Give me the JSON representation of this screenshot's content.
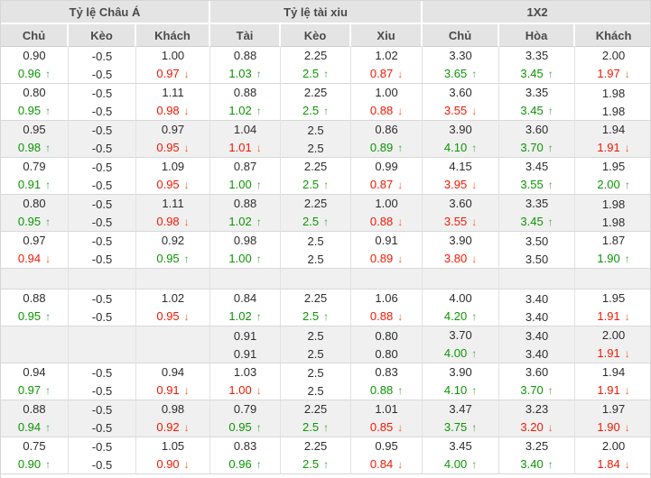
{
  "colors": {
    "header_bg": "#e4e4e4",
    "row_alt_bg": "#f0f0f0",
    "up_green": "#0a9700",
    "down_red": "#f41801",
    "text": "#2d2d2d"
  },
  "icons": {
    "up_arrow": "↑",
    "down_arrow": "↓"
  },
  "table": {
    "header": {
      "groups": [
        {
          "label": "Tỷ lệ Châu Á",
          "cols": [
            "Chủ",
            "Kèo",
            "Khách"
          ]
        },
        {
          "label": "Tỷ lệ tài xiu",
          "cols": [
            "Tài",
            "Kèo",
            "Xiu"
          ]
        },
        {
          "label": "1X2",
          "cols": [
            "Chủ",
            "Hòa",
            "Khách"
          ]
        }
      ]
    },
    "rows": [
      {
        "bg": "white",
        "cells": [
          {
            "top": "0.90",
            "bottom": "0.96",
            "trend": "up"
          },
          {
            "top": "-0.5",
            "bottom": "-0.5",
            "trend": ""
          },
          {
            "top": "1.00",
            "bottom": "0.97",
            "trend": "down"
          },
          {
            "top": "0.88",
            "bottom": "1.03",
            "trend": "up"
          },
          {
            "top": "2.25",
            "bottom": "2.5",
            "trend": "up"
          },
          {
            "top": "1.02",
            "bottom": "0.87",
            "trend": "down"
          },
          {
            "top": "3.30",
            "bottom": "3.65",
            "trend": "up"
          },
          {
            "top": "3.35",
            "bottom": "3.45",
            "trend": "up"
          },
          {
            "top": "2.00",
            "bottom": "1.97",
            "trend": "down"
          }
        ]
      },
      {
        "bg": "white",
        "cells": [
          {
            "top": "0.80",
            "bottom": "0.95",
            "trend": "up"
          },
          {
            "top": "-0.5",
            "bottom": "-0.5",
            "trend": ""
          },
          {
            "top": "1.11",
            "bottom": "0.98",
            "trend": "down"
          },
          {
            "top": "0.88",
            "bottom": "1.02",
            "trend": "up"
          },
          {
            "top": "2.25",
            "bottom": "2.5",
            "trend": "up"
          },
          {
            "top": "1.00",
            "bottom": "0.88",
            "trend": "down"
          },
          {
            "top": "3.60",
            "bottom": "3.55",
            "trend": "down"
          },
          {
            "top": "3.35",
            "bottom": "3.45",
            "trend": "up"
          },
          {
            "top": "1.98",
            "bottom": "1.98",
            "trend": ""
          }
        ]
      },
      {
        "bg": "gray",
        "cells": [
          {
            "top": "0.95",
            "bottom": "0.98",
            "trend": "up"
          },
          {
            "top": "-0.5",
            "bottom": "-0.5",
            "trend": ""
          },
          {
            "top": "0.97",
            "bottom": "0.95",
            "trend": "down"
          },
          {
            "top": "1.04",
            "bottom": "1.01",
            "trend": "down"
          },
          {
            "top": "2.5",
            "bottom": "2.5",
            "trend": ""
          },
          {
            "top": "0.86",
            "bottom": "0.89",
            "trend": "up"
          },
          {
            "top": "3.90",
            "bottom": "4.10",
            "trend": "up"
          },
          {
            "top": "3.60",
            "bottom": "3.70",
            "trend": "up"
          },
          {
            "top": "1.94",
            "bottom": "1.91",
            "trend": "down"
          }
        ]
      },
      {
        "bg": "white",
        "cells": [
          {
            "top": "0.79",
            "bottom": "0.91",
            "trend": "up"
          },
          {
            "top": "-0.5",
            "bottom": "-0.5",
            "trend": ""
          },
          {
            "top": "1.09",
            "bottom": "0.95",
            "trend": "down"
          },
          {
            "top": "0.87",
            "bottom": "1.00",
            "trend": "up"
          },
          {
            "top": "2.25",
            "bottom": "2.5",
            "trend": "up"
          },
          {
            "top": "0.99",
            "bottom": "0.87",
            "trend": "down"
          },
          {
            "top": "4.15",
            "bottom": "3.95",
            "trend": "down"
          },
          {
            "top": "3.45",
            "bottom": "3.55",
            "trend": "up"
          },
          {
            "top": "1.95",
            "bottom": "2.00",
            "trend": "up"
          }
        ]
      },
      {
        "bg": "gray",
        "cells": [
          {
            "top": "0.80",
            "bottom": "0.95",
            "trend": "up"
          },
          {
            "top": "-0.5",
            "bottom": "-0.5",
            "trend": ""
          },
          {
            "top": "1.11",
            "bottom": "0.98",
            "trend": "down"
          },
          {
            "top": "0.88",
            "bottom": "1.02",
            "trend": "up"
          },
          {
            "top": "2.25",
            "bottom": "2.5",
            "trend": "up"
          },
          {
            "top": "1.00",
            "bottom": "0.88",
            "trend": "down"
          },
          {
            "top": "3.60",
            "bottom": "3.55",
            "trend": "down"
          },
          {
            "top": "3.35",
            "bottom": "3.45",
            "trend": "up"
          },
          {
            "top": "1.98",
            "bottom": "1.98",
            "trend": ""
          }
        ]
      },
      {
        "bg": "white",
        "cells": [
          {
            "top": "0.97",
            "bottom": "0.94",
            "trend": "down"
          },
          {
            "top": "-0.5",
            "bottom": "-0.5",
            "trend": ""
          },
          {
            "top": "0.92",
            "bottom": "0.95",
            "trend": "up"
          },
          {
            "top": "0.98",
            "bottom": "1.00",
            "trend": "up"
          },
          {
            "top": "2.5",
            "bottom": "2.5",
            "trend": ""
          },
          {
            "top": "0.91",
            "bottom": "0.89",
            "trend": "down"
          },
          {
            "top": "3.90",
            "bottom": "3.80",
            "trend": "down"
          },
          {
            "top": "3.50",
            "bottom": "3.50",
            "trend": ""
          },
          {
            "top": "1.87",
            "bottom": "1.90",
            "trend": "up"
          }
        ]
      },
      {
        "bg": "gray",
        "empty": true,
        "cells": [
          null,
          null,
          null,
          null,
          null,
          null,
          null,
          null,
          null
        ]
      },
      {
        "bg": "white",
        "cells": [
          {
            "top": "0.88",
            "bottom": "0.95",
            "trend": "up"
          },
          {
            "top": "-0.5",
            "bottom": "-0.5",
            "trend": ""
          },
          {
            "top": "1.02",
            "bottom": "0.95",
            "trend": "down"
          },
          {
            "top": "0.84",
            "bottom": "1.02",
            "trend": "up"
          },
          {
            "top": "2.25",
            "bottom": "2.5",
            "trend": "up"
          },
          {
            "top": "1.06",
            "bottom": "0.88",
            "trend": "down"
          },
          {
            "top": "4.00",
            "bottom": "4.20",
            "trend": "up"
          },
          {
            "top": "3.40",
            "bottom": "3.40",
            "trend": ""
          },
          {
            "top": "1.95",
            "bottom": "1.91",
            "trend": "down"
          }
        ]
      },
      {
        "bg": "gray",
        "cells": [
          null,
          null,
          null,
          {
            "top": "0.91",
            "bottom": "0.91",
            "trend": ""
          },
          {
            "top": "2.5",
            "bottom": "2.5",
            "trend": ""
          },
          {
            "top": "0.80",
            "bottom": "0.80",
            "trend": ""
          },
          {
            "top": "3.70",
            "bottom": "4.00",
            "trend": "up"
          },
          {
            "top": "3.40",
            "bottom": "3.40",
            "trend": ""
          },
          {
            "top": "2.00",
            "bottom": "1.91",
            "trend": "down"
          }
        ]
      },
      {
        "bg": "white",
        "cells": [
          {
            "top": "0.94",
            "bottom": "0.97",
            "trend": "up"
          },
          {
            "top": "-0.5",
            "bottom": "-0.5",
            "trend": ""
          },
          {
            "top": "0.94",
            "bottom": "0.91",
            "trend": "down"
          },
          {
            "top": "1.03",
            "bottom": "1.00",
            "trend": "down"
          },
          {
            "top": "2.5",
            "bottom": "2.5",
            "trend": ""
          },
          {
            "top": "0.83",
            "bottom": "0.88",
            "trend": "up"
          },
          {
            "top": "3.90",
            "bottom": "4.10",
            "trend": "up"
          },
          {
            "top": "3.60",
            "bottom": "3.70",
            "trend": "up"
          },
          {
            "top": "1.94",
            "bottom": "1.91",
            "trend": "down"
          }
        ]
      },
      {
        "bg": "gray",
        "cells": [
          {
            "top": "0.88",
            "bottom": "0.94",
            "trend": "up"
          },
          {
            "top": "-0.5",
            "bottom": "-0.5",
            "trend": ""
          },
          {
            "top": "0.98",
            "bottom": "0.92",
            "trend": "down"
          },
          {
            "top": "0.79",
            "bottom": "0.95",
            "trend": "up"
          },
          {
            "top": "2.25",
            "bottom": "2.5",
            "trend": "up"
          },
          {
            "top": "1.01",
            "bottom": "0.85",
            "trend": "down"
          },
          {
            "top": "3.47",
            "bottom": "3.75",
            "trend": "up"
          },
          {
            "top": "3.23",
            "bottom": "3.20",
            "trend": "down"
          },
          {
            "top": "1.97",
            "bottom": "1.90",
            "trend": "down"
          }
        ]
      },
      {
        "bg": "white",
        "cells": [
          {
            "top": "0.75",
            "bottom": "0.90",
            "trend": "up"
          },
          {
            "top": "-0.5",
            "bottom": "-0.5",
            "trend": ""
          },
          {
            "top": "1.05",
            "bottom": "0.90",
            "trend": "down"
          },
          {
            "top": "0.83",
            "bottom": "0.96",
            "trend": "up"
          },
          {
            "top": "2.25",
            "bottom": "2.5",
            "trend": "up"
          },
          {
            "top": "0.95",
            "bottom": "0.84",
            "trend": "down"
          },
          {
            "top": "3.45",
            "bottom": "4.00",
            "trend": "up"
          },
          {
            "top": "3.25",
            "bottom": "3.40",
            "trend": "up"
          },
          {
            "top": "2.00",
            "bottom": "1.84",
            "trend": "down"
          }
        ]
      }
    ]
  }
}
